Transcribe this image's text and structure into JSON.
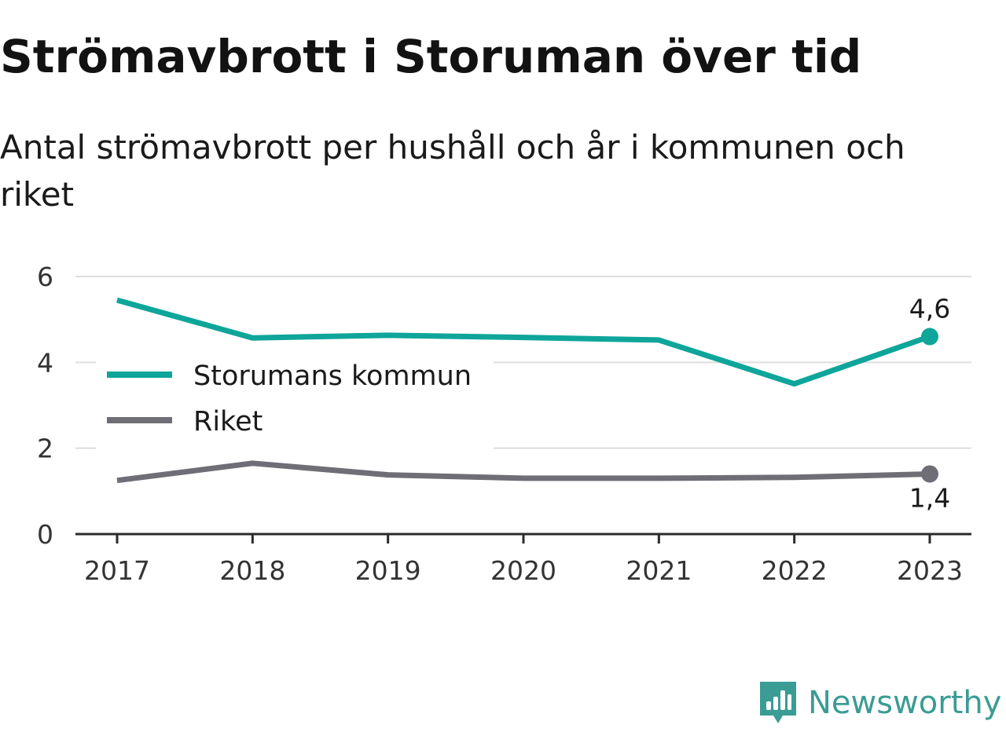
{
  "header": {
    "title": "Strömavbrott i Storuman över tid",
    "subtitle": "Antal strömavbrott per hushåll och år i kommunen och riket"
  },
  "brand": {
    "name": "Newsworthy",
    "logo_icon": "newsworthy-logo-icon",
    "color": "#3a9c94"
  },
  "chart_data": {
    "type": "line",
    "title": "Strömavbrott i Storuman över tid",
    "subtitle": "Antal strömavbrott per hushåll och år i kommunen och riket",
    "xlabel": "",
    "ylabel": "",
    "x": [
      "2017",
      "2018",
      "2019",
      "2020",
      "2021",
      "2022",
      "2023"
    ],
    "ylim": [
      0,
      6
    ],
    "yticks": [
      "0",
      "2",
      "4",
      "6"
    ],
    "grid": true,
    "legend_position": "left",
    "series": [
      {
        "name": "Storumans kommun",
        "color": "#0ea59a",
        "values": [
          5.45,
          4.57,
          4.63,
          4.58,
          4.52,
          3.5,
          4.6
        ],
        "end_label": "4,6"
      },
      {
        "name": "Riket",
        "color": "#6f6e76",
        "values": [
          1.25,
          1.65,
          1.38,
          1.3,
          1.3,
          1.32,
          1.4
        ],
        "end_label": "1,4"
      }
    ]
  }
}
